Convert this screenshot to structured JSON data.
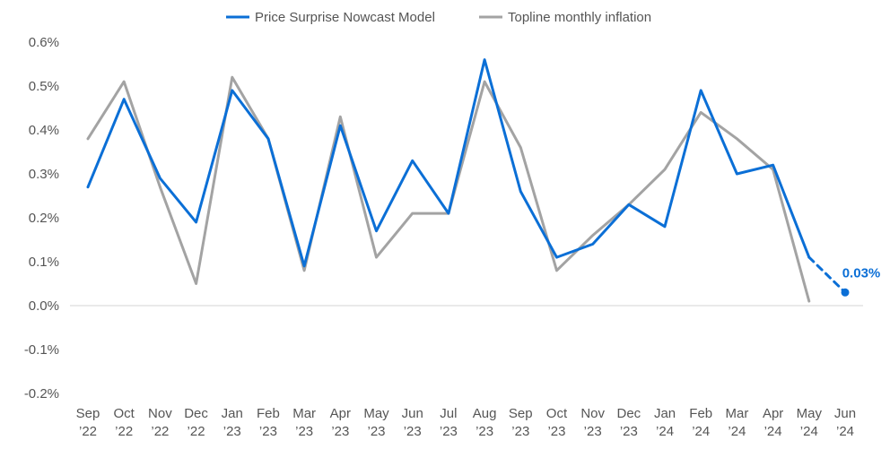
{
  "chart_data": {
    "type": "line",
    "title": "",
    "xlabel": "",
    "ylabel": "",
    "ylim": [
      -0.2,
      0.6
    ],
    "y_ticks": [
      -0.2,
      -0.1,
      0.0,
      0.1,
      0.2,
      0.3,
      0.4,
      0.5,
      0.6
    ],
    "y_tick_labels": [
      "-0.2%",
      "-0.1%",
      "0.0%",
      "0.1%",
      "0.2%",
      "0.3%",
      "0.4%",
      "0.5%",
      "0.6%"
    ],
    "grid": false,
    "legend_position": "top-center",
    "categories": [
      {
        "month": "Sep",
        "year": "’22"
      },
      {
        "month": "Oct",
        "year": "’22"
      },
      {
        "month": "Nov",
        "year": "’22"
      },
      {
        "month": "Dec",
        "year": "’22"
      },
      {
        "month": "Jan",
        "year": "’23"
      },
      {
        "month": "Feb",
        "year": "’23"
      },
      {
        "month": "Mar",
        "year": "’23"
      },
      {
        "month": "Apr",
        "year": "’23"
      },
      {
        "month": "May",
        "year": "’23"
      },
      {
        "month": "Jun",
        "year": "’23"
      },
      {
        "month": "Jul",
        "year": "’23"
      },
      {
        "month": "Aug",
        "year": "’23"
      },
      {
        "month": "Sep",
        "year": "’23"
      },
      {
        "month": "Oct",
        "year": "’23"
      },
      {
        "month": "Nov",
        "year": "’23"
      },
      {
        "month": "Dec",
        "year": "’23"
      },
      {
        "month": "Jan",
        "year": "’24"
      },
      {
        "month": "Feb",
        "year": "’24"
      },
      {
        "month": "Mar",
        "year": "’24"
      },
      {
        "month": "Apr",
        "year": "’24"
      },
      {
        "month": "May",
        "year": "’24"
      },
      {
        "month": "Jun",
        "year": "’24"
      }
    ],
    "series": [
      {
        "name": "Price Surprise Nowcast Model",
        "color": "#0b6fd6",
        "values": [
          0.27,
          0.47,
          0.29,
          0.19,
          0.49,
          0.38,
          0.09,
          0.41,
          0.17,
          0.33,
          0.21,
          0.56,
          0.26,
          0.11,
          0.14,
          0.23,
          0.18,
          0.49,
          0.3,
          0.32,
          0.11,
          0.03
        ],
        "dashed_from_index": 20
      },
      {
        "name": "Topline monthly inflation",
        "color": "#a3a3a3",
        "values": [
          0.38,
          0.51,
          0.27,
          0.05,
          0.52,
          0.38,
          0.08,
          0.43,
          0.11,
          0.21,
          0.21,
          0.51,
          0.36,
          0.08,
          0.16,
          0.23,
          0.31,
          0.44,
          0.38,
          0.31,
          0.01,
          null
        ]
      }
    ],
    "annotations": [
      {
        "series": 0,
        "index": 21,
        "text": "0.03%",
        "color": "#0b6fd6"
      }
    ]
  }
}
